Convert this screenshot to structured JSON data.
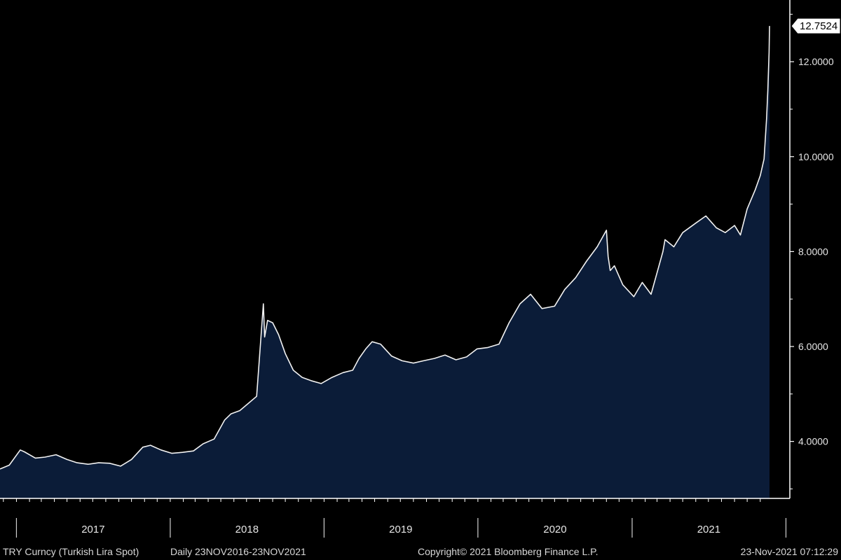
{
  "chart_data": {
    "type": "area",
    "ylim": [
      2.8,
      13.3
    ],
    "y_ticks": [
      4,
      6,
      8,
      10,
      12
    ],
    "y_tick_labels": [
      "4.0000",
      "6.0000",
      "8.0000",
      "10.0000",
      "12.0000"
    ],
    "last_value_label": "12.7524",
    "years": [
      "2017",
      "2018",
      "2019",
      "2020",
      "2021"
    ],
    "x": [
      "2016-11-23",
      "2016-12-15",
      "2017-01-10",
      "2017-01-20",
      "2017-02-15",
      "2017-03-10",
      "2017-04-05",
      "2017-05-01",
      "2017-05-25",
      "2017-06-20",
      "2017-07-15",
      "2017-08-10",
      "2017-09-05",
      "2017-10-01",
      "2017-10-28",
      "2017-11-15",
      "2017-12-10",
      "2018-01-05",
      "2018-01-30",
      "2018-02-25",
      "2018-03-20",
      "2018-04-15",
      "2018-05-10",
      "2018-05-25",
      "2018-06-15",
      "2018-07-05",
      "2018-07-25",
      "2018-08-10",
      "2018-08-13",
      "2018-08-20",
      "2018-09-01",
      "2018-09-15",
      "2018-10-01",
      "2018-10-20",
      "2018-11-10",
      "2018-12-01",
      "2018-12-25",
      "2019-01-20",
      "2019-02-15",
      "2019-03-10",
      "2019-03-25",
      "2019-04-10",
      "2019-04-25",
      "2019-05-15",
      "2019-06-10",
      "2019-07-05",
      "2019-08-01",
      "2019-08-25",
      "2019-09-20",
      "2019-10-15",
      "2019-11-10",
      "2019-12-05",
      "2019-12-30",
      "2020-01-25",
      "2020-02-20",
      "2020-03-15",
      "2020-04-10",
      "2020-05-05",
      "2020-06-01",
      "2020-07-01",
      "2020-07-25",
      "2020-08-20",
      "2020-09-15",
      "2020-10-10",
      "2020-11-01",
      "2020-11-05",
      "2020-11-10",
      "2020-11-20",
      "2020-12-10",
      "2021-01-05",
      "2021-01-25",
      "2021-02-15",
      "2021-03-15",
      "2021-03-20",
      "2021-04-10",
      "2021-05-01",
      "2021-06-01",
      "2021-06-25",
      "2021-07-20",
      "2021-08-10",
      "2021-09-01",
      "2021-09-15",
      "2021-10-01",
      "2021-10-20",
      "2021-11-01",
      "2021-11-10",
      "2021-11-16",
      "2021-11-19",
      "2021-11-22",
      "2021-11-23"
    ],
    "series": [
      {
        "values": [
          3.42,
          3.5,
          3.82,
          3.78,
          3.65,
          3.67,
          3.72,
          3.62,
          3.55,
          3.52,
          3.55,
          3.54,
          3.48,
          3.62,
          3.88,
          3.92,
          3.82,
          3.75,
          3.77,
          3.8,
          3.95,
          4.05,
          4.45,
          4.58,
          4.65,
          4.8,
          4.95,
          6.9,
          6.2,
          6.55,
          6.5,
          6.25,
          5.85,
          5.5,
          5.35,
          5.28,
          5.22,
          5.35,
          5.45,
          5.5,
          5.75,
          5.95,
          6.1,
          6.05,
          5.8,
          5.7,
          5.65,
          5.7,
          5.75,
          5.82,
          5.72,
          5.78,
          5.95,
          5.98,
          6.05,
          6.5,
          6.9,
          7.1,
          6.8,
          6.85,
          7.2,
          7.45,
          7.8,
          8.1,
          8.45,
          7.9,
          7.6,
          7.7,
          7.3,
          7.05,
          7.35,
          7.1,
          8.0,
          8.25,
          8.1,
          8.4,
          8.6,
          8.75,
          8.5,
          8.4,
          8.55,
          8.35,
          8.9,
          9.3,
          9.6,
          9.95,
          10.8,
          11.4,
          12.2,
          12.7524
        ]
      }
    ],
    "footer": {
      "ticker": "TRY Curncy (Turkish Lira Spot)",
      "range": "Daily 23NOV2016-23NOV2021",
      "copyright": "Copyright© 2021 Bloomberg Finance L.P.",
      "timestamp": "23-Nov-2021 07:12:29"
    },
    "colors": {
      "background": "#000000",
      "area_fill": "#0b1c38",
      "line": "#f2f2f2",
      "axis": "#ffffff"
    }
  }
}
